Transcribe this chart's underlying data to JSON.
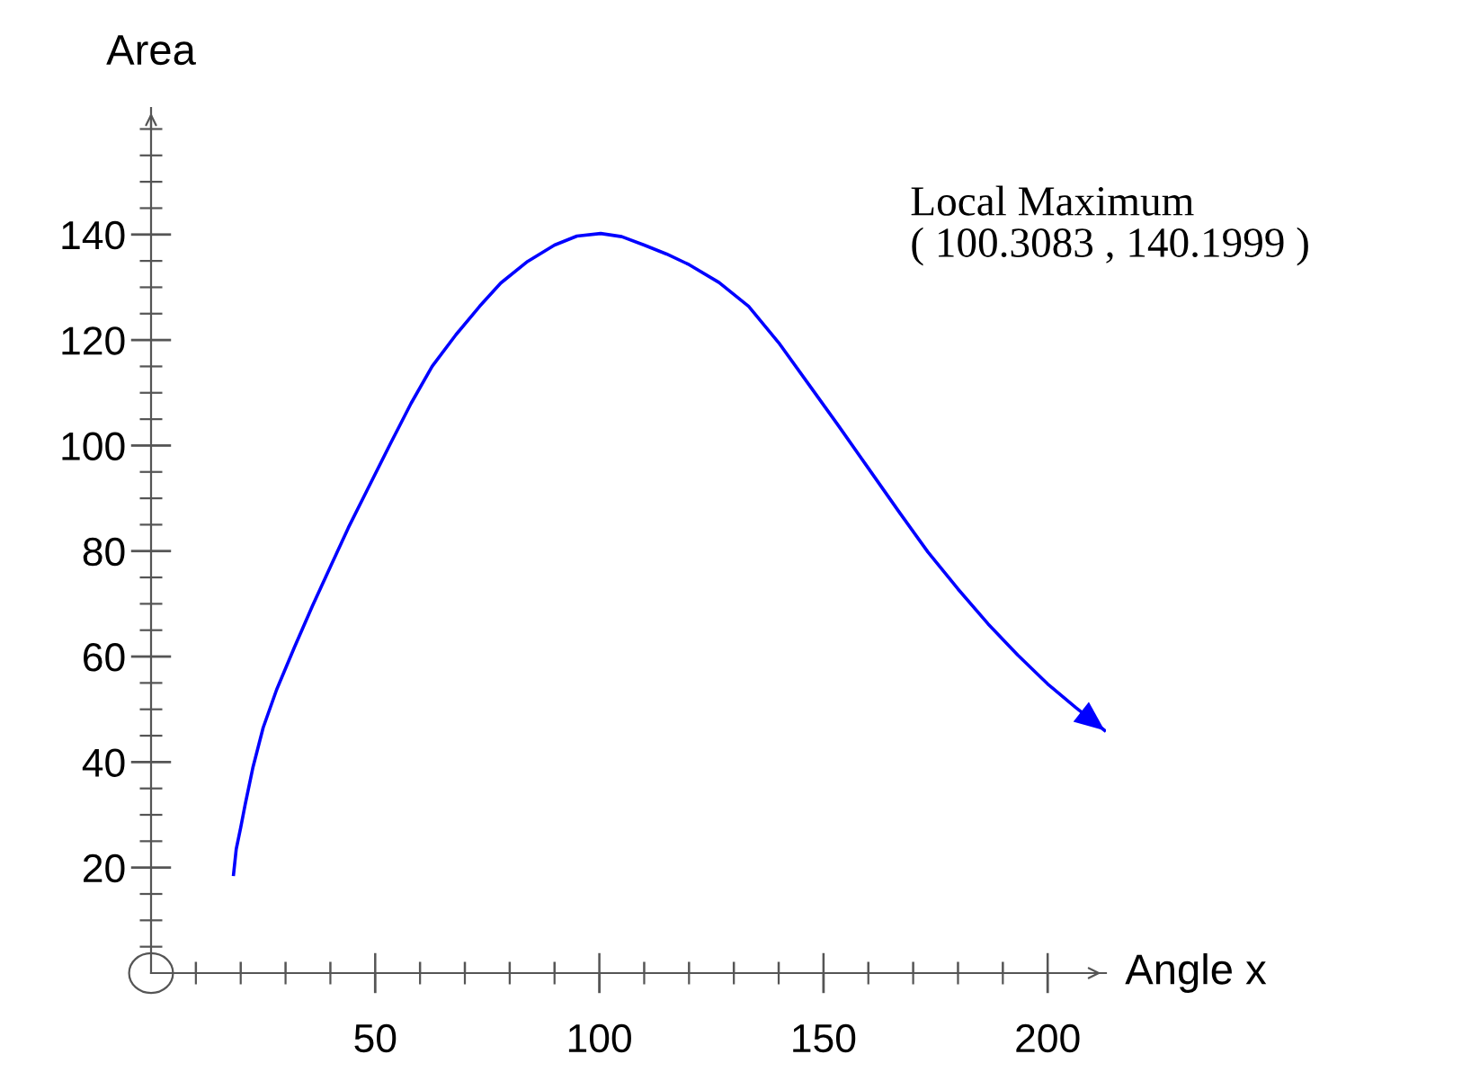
{
  "chart_data": {
    "type": "line",
    "xlabel": "Angle x",
    "ylabel": "Area",
    "annotations": [
      "Local Maximum\n( 100.3083 , 140.1999 )"
    ],
    "x": [
      18.4,
      19,
      20,
      21,
      22.7,
      25,
      28,
      32,
      36,
      40,
      44,
      48,
      53.3,
      58,
      62.7,
      68,
      73.3,
      78,
      84,
      90,
      95,
      100.3,
      105,
      110,
      115,
      120,
      126.7,
      133.3,
      140,
      146.7,
      153.3,
      160,
      166.7,
      173.3,
      180,
      186.7,
      193.3,
      200,
      206.3,
      212.7
    ],
    "series": [
      {
        "color": "#0000ff",
        "values": [
          18.7,
          23.5,
          27.6,
          32,
          38.9,
          46.5,
          53.7,
          61.8,
          69.6,
          77,
          84.4,
          91.2,
          100.2,
          108,
          115,
          121,
          126.4,
          130.8,
          134.9,
          138,
          139.7,
          140.2,
          139.6,
          138,
          136.3,
          134.3,
          130.9,
          126.4,
          119.5,
          111.6,
          103.8,
          95.7,
          87.6,
          79.8,
          72.8,
          66.2,
          60.3,
          54.8,
          50.3,
          46
        ]
      }
    ],
    "xlim": [
      0,
      213
    ],
    "ylim": [
      0,
      164
    ],
    "xticks": [
      {
        "value": 10,
        "label": null
      },
      {
        "value": 20,
        "label": null
      },
      {
        "value": 30,
        "label": null
      },
      {
        "value": 40,
        "label": null
      },
      50,
      {
        "value": 60,
        "label": null
      },
      {
        "value": 70,
        "label": null
      },
      {
        "value": 80,
        "label": null
      },
      {
        "value": 90,
        "label": null
      },
      100,
      {
        "value": 110,
        "label": null
      },
      {
        "value": 120,
        "label": null
      },
      {
        "value": 130,
        "label": null
      },
      {
        "value": 140,
        "label": null
      },
      150,
      {
        "value": 160,
        "label": null
      },
      {
        "value": 170,
        "label": null
      },
      {
        "value": 180,
        "label": null
      },
      {
        "value": 190,
        "label": null
      },
      200
    ],
    "yticks": [
      20,
      40,
      60,
      80,
      100,
      120,
      140
    ],
    "grid": false,
    "marker": "none",
    "line_style": "solid"
  }
}
